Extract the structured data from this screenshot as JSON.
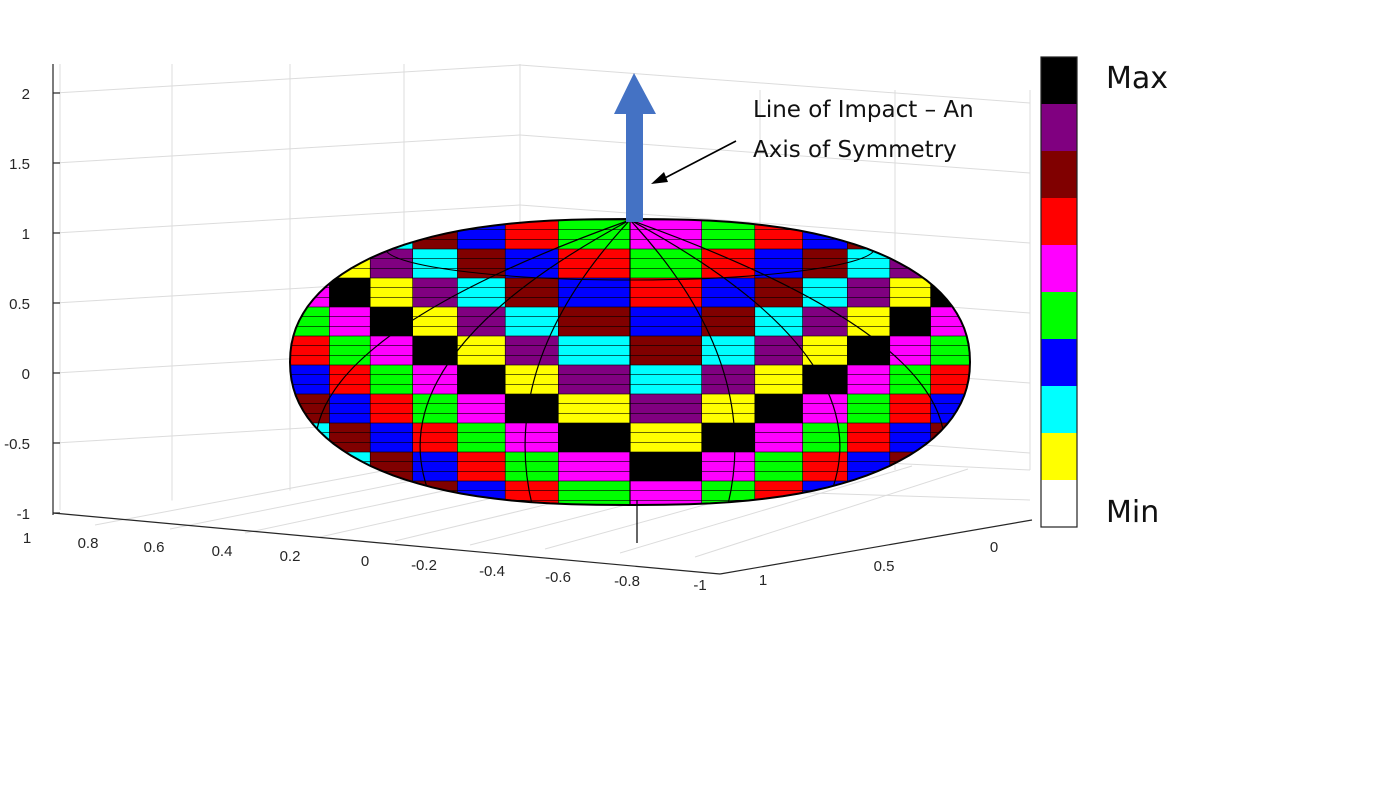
{
  "chart_data": {
    "type": "surface3d",
    "z_ticks": [
      "2",
      "1.5",
      "1",
      "0.5",
      "0",
      "-0.5",
      "-1"
    ],
    "x_ticks": [
      "1",
      "0.8",
      "0.6",
      "0.4",
      "0.2",
      "0",
      "-0.2",
      "-0.4",
      "-0.6",
      "-0.8",
      "-1"
    ],
    "y_ticks": [
      "1",
      "0.5",
      "0"
    ],
    "zlim": [
      -1,
      2
    ],
    "xlim": [
      -1,
      1
    ],
    "grid": true,
    "annotation": {
      "line1": "Line of Impact – An",
      "line2": "Axis of Symmetry"
    },
    "colorbar": {
      "max_label": "Max",
      "min_label": "Min",
      "colors_top_to_bottom": [
        "#000000",
        "#800080",
        "#800000",
        "#ff0000",
        "#ff00ff",
        "#00ff00",
        "#0000ff",
        "#00ffff",
        "#ffff00",
        "#ffffff"
      ]
    },
    "arrow_color": "#4472c4"
  }
}
